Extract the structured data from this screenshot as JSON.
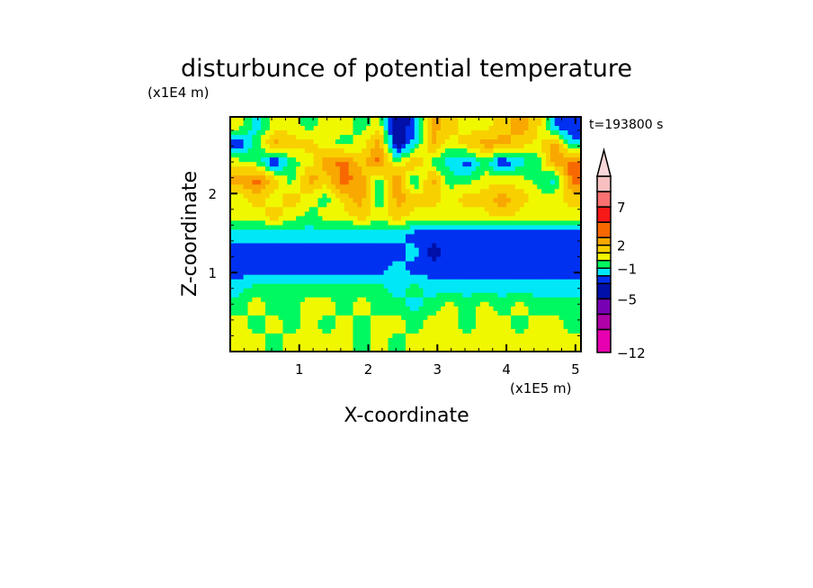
{
  "chart_data": {
    "type": "heatmap",
    "title": "disturbunce of potential temperature",
    "xlabel": "X-coordinate",
    "ylabel": "Z-coordinate",
    "x_unit_label": "(x1E5 m)",
    "y_unit_label": "(x1E4 m)",
    "time_label": "t=193800 s",
    "xlim": [
      0,
      5.08
    ],
    "ylim": [
      0,
      2.97
    ],
    "x_ticks": [
      "1",
      "2",
      "3",
      "4",
      "5"
    ],
    "y_ticks": [
      "1",
      "2"
    ],
    "colorbar": {
      "levels": [
        -12,
        -9,
        -7,
        -5,
        -3,
        -2,
        -1,
        0,
        1,
        2,
        3,
        5,
        7,
        9,
        11
      ],
      "colors": [
        "#e600b0",
        "#b000a8",
        "#7800b4",
        "#0010a8",
        "#0030f0",
        "#00e8f8",
        "#00f860",
        "#f0f800",
        "#f8d000",
        "#f8a800",
        "#f86800",
        "#f81818",
        "#f87070",
        "#f8c0c0"
      ],
      "over_color": "#f8d8d8",
      "tick_labels": [
        "-12",
        "-5",
        "-1",
        "2",
        "7"
      ]
    },
    "grid_note": "rows from top (z=3) to bottom (z=0), columns from x=0 to x=5.08",
    "values": [
      [
        0.5,
        -1.5,
        0.5,
        0.5,
        -0.5,
        0.5,
        0.5,
        -0.5,
        0.5,
        -4,
        -2.5,
        2.5,
        1.5,
        0.5,
        0.5,
        1.5,
        2.5,
        1.5,
        -2.5,
        -3
      ],
      [
        -3,
        -0.5,
        2.5,
        1.5,
        1.5,
        0.5,
        -0.5,
        0.5,
        2.5,
        -4,
        -1.5,
        2.5,
        0.5,
        1.5,
        2.5,
        2.5,
        1.5,
        0.5,
        2.5,
        -1.5
      ],
      [
        0.5,
        -0.5,
        -3,
        -0.5,
        0.5,
        2.5,
        3.5,
        1.5,
        3.5,
        -0.5,
        2.5,
        -0.5,
        -1.5,
        -2.5,
        -0.5,
        -3,
        -1.5,
        -0.5,
        2.5,
        3.5
      ],
      [
        2.5,
        3.5,
        1.5,
        -0.5,
        2.5,
        1.5,
        3.5,
        2.5,
        -0.5,
        3.5,
        -1.5,
        2.5,
        -0.5,
        -0.5,
        0.5,
        0.5,
        0.5,
        -0.5,
        -1.5,
        3.5
      ],
      [
        0.5,
        1.5,
        0.5,
        1.5,
        0.5,
        -0.5,
        1.5,
        2.5,
        -1.5,
        2.5,
        1.5,
        1.5,
        0.5,
        1.5,
        1.5,
        2.5,
        1.5,
        0.5,
        0.5,
        1.5
      ],
      [
        0.5,
        0.5,
        1.5,
        0.5,
        -0.5,
        0.5,
        0.5,
        1.5,
        0.5,
        1.5,
        0.5,
        0.5,
        0.5,
        0.5,
        0.5,
        1.5,
        0.5,
        0.5,
        0.5,
        0.5
      ],
      [
        -1.5,
        -1.5,
        -1.5,
        -1.5,
        -1.5,
        -1.5,
        -1.5,
        -1.5,
        -1.5,
        -1.5,
        -2.5,
        -2.5,
        -2.5,
        -2.5,
        -2.5,
        -2.5,
        -2.5,
        -2.5,
        -2.5,
        -2.5
      ],
      [
        -2.5,
        -2.5,
        -2.5,
        -2.5,
        -2.5,
        -2.5,
        -2.5,
        -2.5,
        -2.5,
        -2.5,
        -1.5,
        -3.5,
        -2.5,
        -2.5,
        -2.5,
        -2.5,
        -2.5,
        -2.5,
        -2.5,
        -2.5
      ],
      [
        -2.5,
        -2.5,
        -2.5,
        -2.5,
        -2.5,
        -2.5,
        -2.5,
        -2.5,
        -2.5,
        -1.5,
        -2.5,
        -2.5,
        -2.5,
        -2.5,
        -2.5,
        -2.5,
        -2.5,
        -2.5,
        -2.5,
        -2.5
      ],
      [
        -1.5,
        -0.5,
        -0.5,
        -0.5,
        -0.5,
        -0.5,
        -0.5,
        -0.5,
        -0.5,
        -1.5,
        -0.5,
        -1.5,
        -1.5,
        -1.5,
        -1.5,
        -1.5,
        -1.5,
        -1.5,
        -1.5,
        -1.5
      ],
      [
        -0.5,
        0.5,
        -0.5,
        -0.5,
        0.5,
        0.5,
        -0.5,
        0.5,
        -0.5,
        -0.5,
        -1.5,
        -0.5,
        0.5,
        -0.5,
        0.5,
        -0.5,
        0.5,
        -0.5,
        -0.5,
        -0.5
      ],
      [
        0.5,
        -0.5,
        0.5,
        -0.5,
        0.5,
        -0.5,
        0.5,
        -0.5,
        0.5,
        0.5,
        -0.5,
        0.5,
        0.5,
        -0.5,
        0.5,
        0.5,
        -0.5,
        0.5,
        0.5,
        -0.5
      ],
      [
        0.5,
        0.5,
        -0.5,
        0.5,
        0.5,
        0.5,
        0.5,
        -0.5,
        0.5,
        -0.5,
        0.5,
        0.5,
        0.5,
        0.5,
        0.5,
        0.5,
        0.5,
        0.5,
        0.5,
        0.5
      ]
    ]
  }
}
